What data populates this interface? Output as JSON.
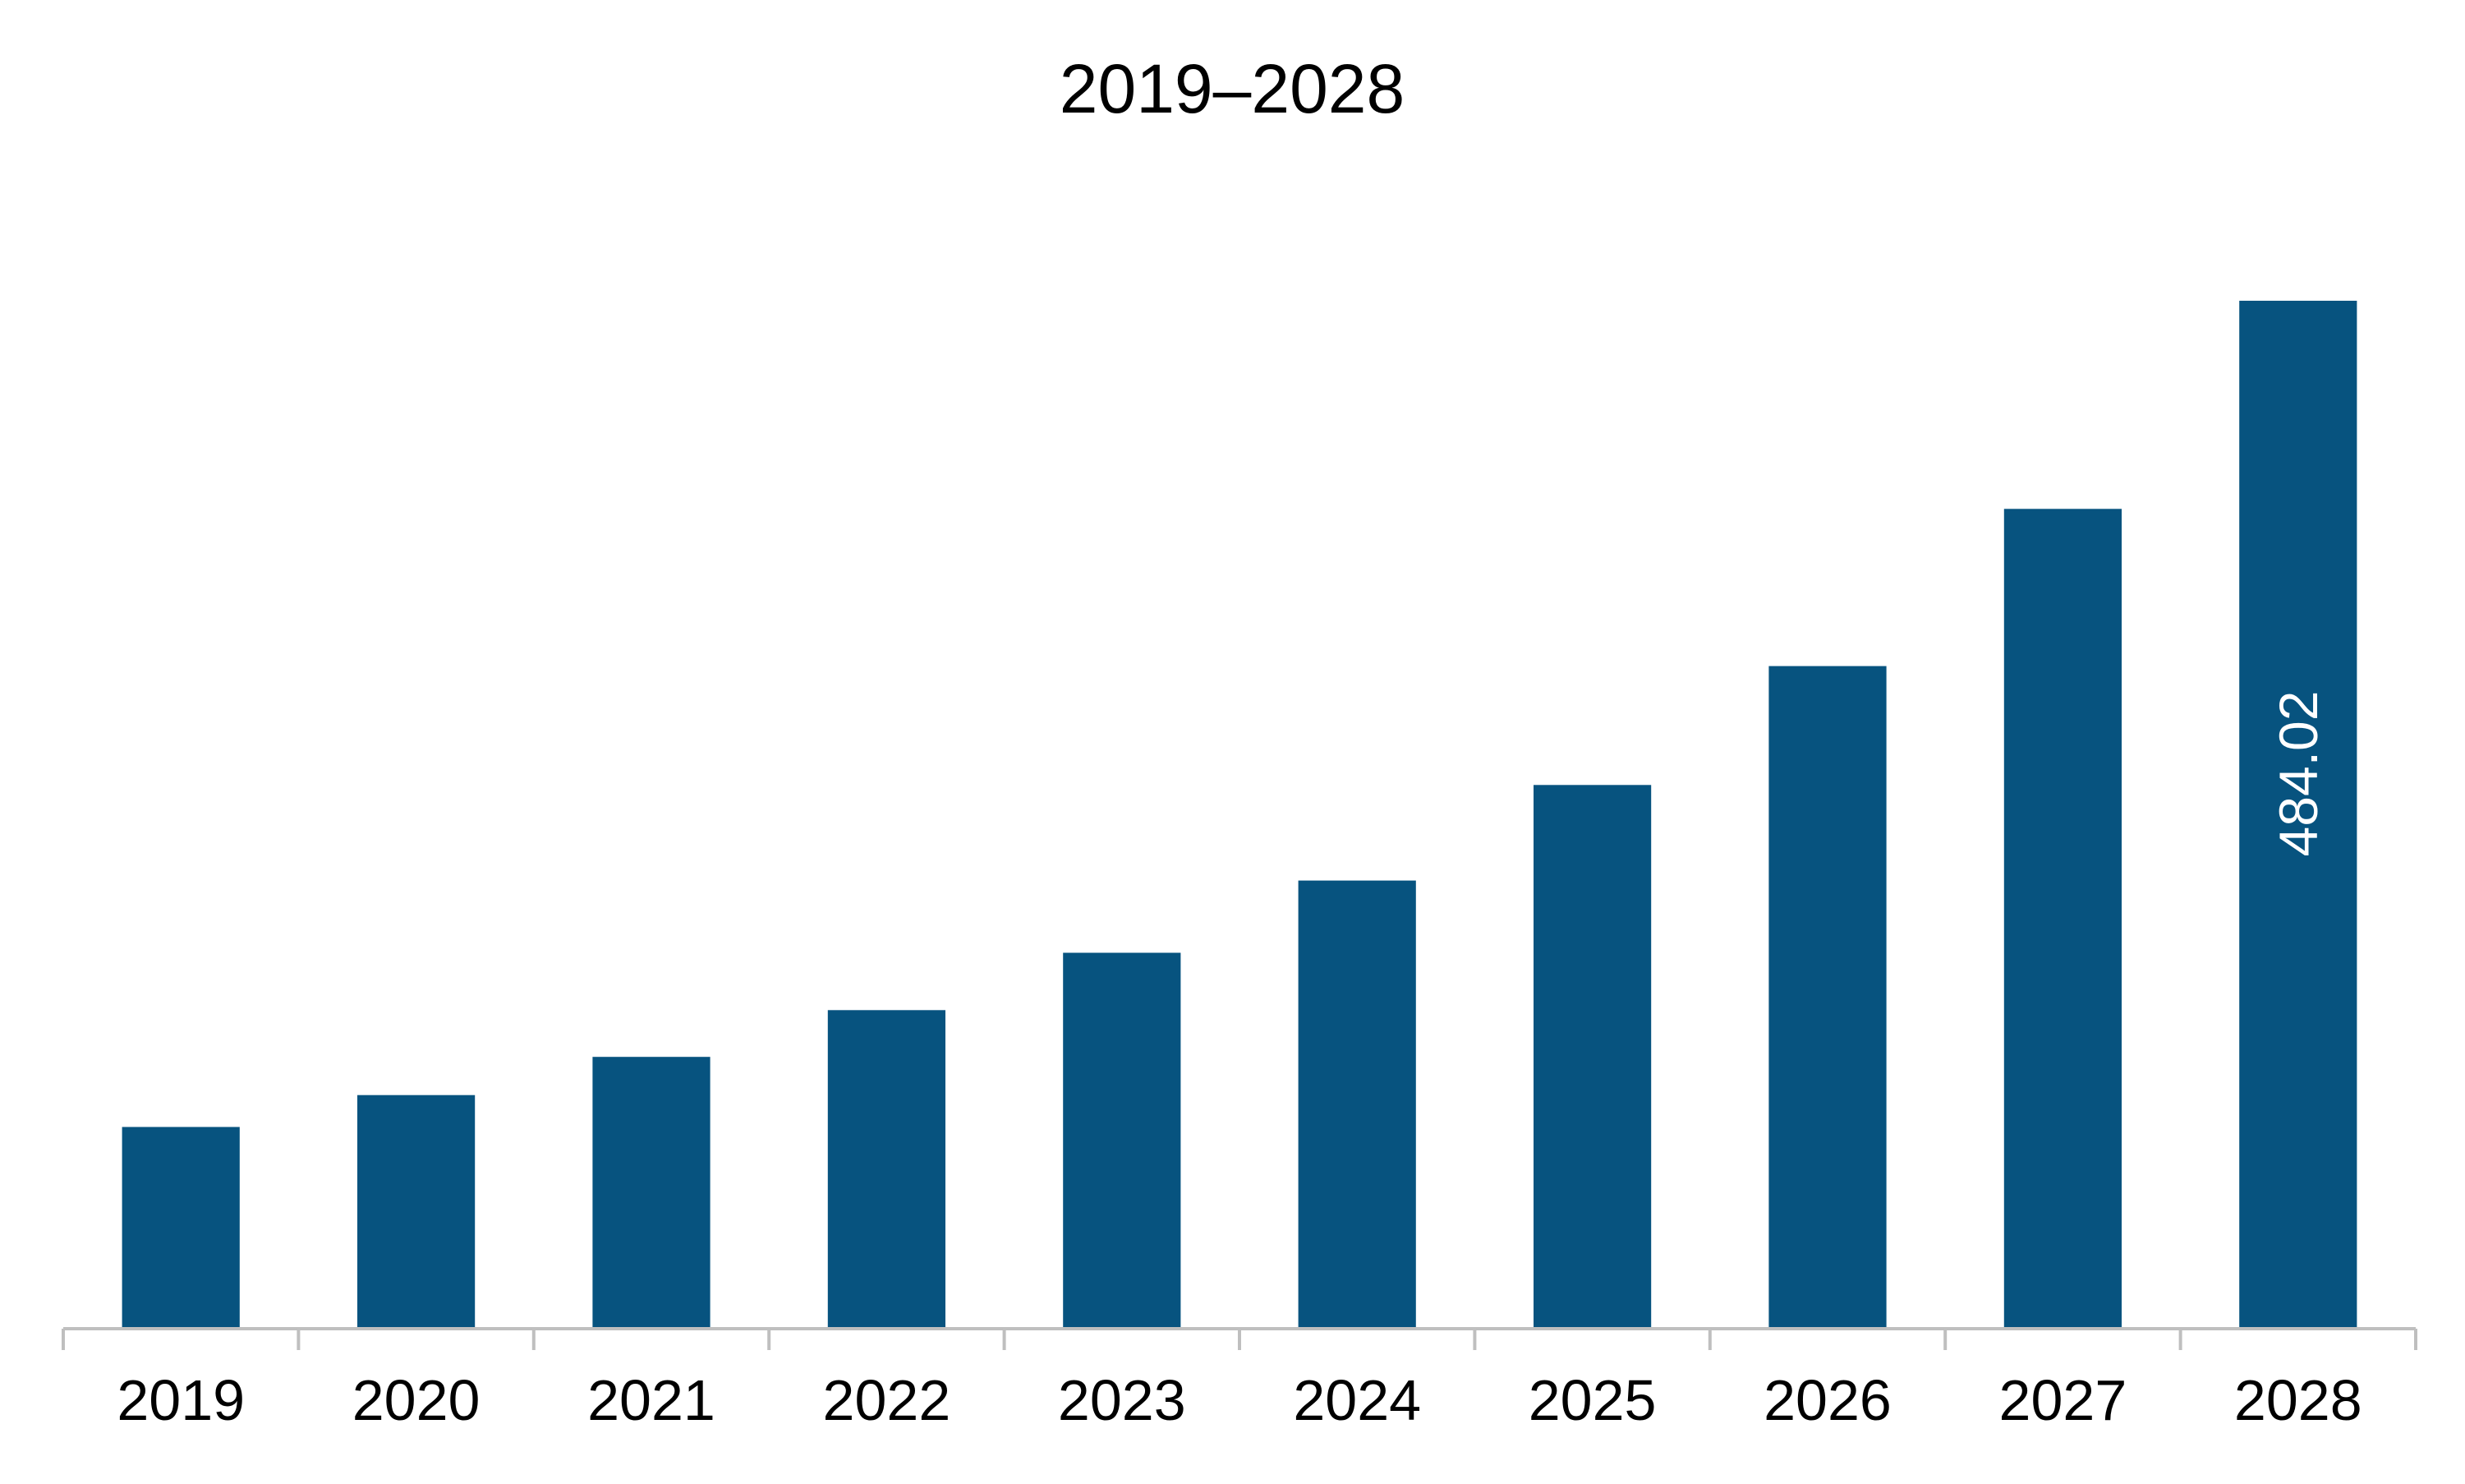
{
  "chart_data": {
    "type": "bar",
    "title": "2019–2028",
    "categories": [
      "2019",
      "2020",
      "2021",
      "2022",
      "2023",
      "2024",
      "2025",
      "2026",
      "2027",
      "2028"
    ],
    "values": [
      95,
      110,
      128,
      150,
      177,
      211,
      256,
      312,
      386,
      484.02
    ],
    "data_labels": [
      "",
      "",
      "",
      "",
      "",
      "",
      "",
      "",
      "",
      "484.02"
    ],
    "xlabel": "",
    "ylabel": "",
    "ylim": [
      0,
      500
    ],
    "grid": false,
    "y_axis_visible": false,
    "colors": {
      "bar": "#07537f",
      "axis": "#bfbfbf",
      "text": "#000000",
      "data_label": "#ffffff"
    }
  }
}
